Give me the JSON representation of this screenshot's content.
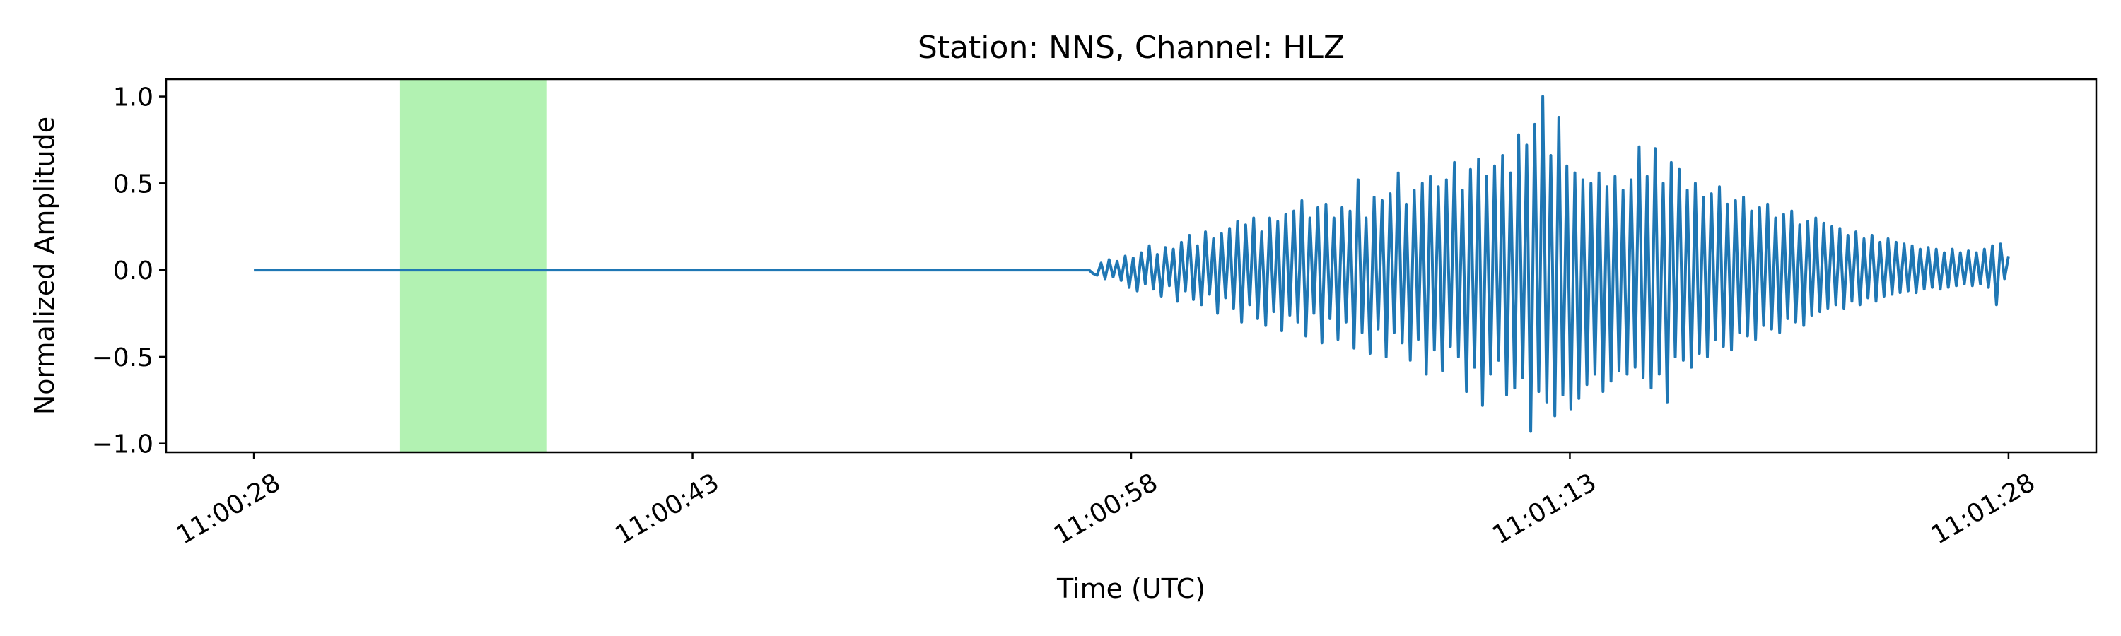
{
  "chart_data": {
    "type": "line",
    "title": "Station: NNS, Channel: HLZ",
    "xlabel": "Time (UTC)",
    "ylabel": "Normalized Amplitude",
    "x_start": "11:00:28",
    "x_end": "11:01:28",
    "xlim": [
      "11:00:25",
      "11:01:31"
    ],
    "ylim": [
      -1.05,
      1.1
    ],
    "x_ticks": [
      "11:00:28",
      "11:00:43",
      "11:00:58",
      "11:01:13",
      "11:01:28"
    ],
    "y_ticks": [
      -1.0,
      -0.5,
      0.0,
      0.5,
      1.0
    ],
    "y_tick_labels": [
      "−1.0",
      "−0.5",
      "0.0",
      "0.5",
      "1.0"
    ],
    "x_tick_rotation_deg": 30,
    "grid": false,
    "highlight_span": {
      "start": "11:00:33",
      "end": "11:00:38",
      "color": "#b2f2b2"
    },
    "series": [
      {
        "color": "#1f77b4",
        "values": [
          0.0,
          0.0,
          0.0,
          0.0,
          0.0,
          0.0,
          0.0,
          0.0,
          0.0,
          0.0,
          0.0,
          0.0,
          0.0,
          0.0,
          0.0,
          0.0,
          0.0,
          0.0,
          0.0,
          0.0,
          0.0,
          0.0,
          0.0,
          0.0,
          0.0,
          0.0,
          0.0,
          0.0,
          0.0,
          0.0,
          0.0,
          0.0,
          0.0,
          0.0,
          0.0,
          0.0,
          0.0,
          0.0,
          0.0,
          0.0,
          0.0,
          0.0,
          0.0,
          0.0,
          0.0,
          0.0,
          0.0,
          0.0,
          0.0,
          0.0,
          0.0,
          0.0,
          0.0,
          0.0,
          0.0,
          0.0,
          0.0,
          0.0,
          0.0,
          0.0,
          0.0,
          0.0,
          0.0,
          0.0,
          0.0,
          0.0,
          0.0,
          0.0,
          0.0,
          0.0,
          0.0,
          0.0,
          0.0,
          0.0,
          0.0,
          0.0,
          0.0,
          0.0,
          0.0,
          0.0,
          0.0,
          0.0,
          0.0,
          0.0,
          0.0,
          0.0,
          0.0,
          0.0,
          0.0,
          0.0,
          0.0,
          0.0,
          0.0,
          0.0,
          0.0,
          0.0,
          0.0,
          0.0,
          0.0,
          0.0,
          0.0,
          0.0,
          0.0,
          0.0,
          0.0,
          0.0,
          0.0,
          0.0,
          0.0,
          0.0,
          0.0,
          0.0,
          0.0,
          0.0,
          0.0,
          0.0,
          0.0,
          0.0,
          0.0,
          0.0,
          0.0,
          0.0,
          0.0,
          0.0,
          0.0,
          0.0,
          0.0,
          0.0,
          0.0,
          0.0,
          0.0,
          0.0,
          0.0,
          0.0,
          0.0,
          0.0,
          0.0,
          0.0,
          0.0,
          0.0,
          0.0,
          0.0,
          0.0,
          0.0,
          0.0,
          0.0,
          0.0,
          0.0,
          0.0,
          0.0,
          0.0,
          0.0,
          0.0,
          0.0,
          0.0,
          0.0,
          0.0,
          0.0,
          0.0,
          0.0,
          0.0,
          0.0,
          0.0,
          0.0,
          0.0,
          0.0,
          0.0,
          0.0,
          0.0,
          0.0,
          0.0,
          0.0,
          0.0,
          0.0,
          0.0,
          0.0,
          0.0,
          0.0,
          0.0,
          0.0,
          0.0,
          0.0,
          0.0,
          0.0,
          0.0,
          0.0,
          0.0,
          0.0,
          0.0,
          0.0,
          0.0,
          0.0,
          0.0,
          0.0,
          0.0,
          0.0,
          0.0,
          0.0,
          0.0,
          0.0,
          0.0,
          0.0,
          0.0,
          0.0,
          0.0,
          0.0,
          0.0,
          0.0,
          0.0,
          -0.02,
          -0.03,
          0.04,
          -0.05,
          0.06,
          -0.04,
          0.05,
          -0.06,
          0.08,
          -0.1,
          0.07,
          -0.12,
          0.1,
          -0.08,
          0.14,
          -0.11,
          0.09,
          -0.15,
          0.13,
          -0.09,
          0.12,
          -0.18,
          0.16,
          -0.12,
          0.2,
          -0.17,
          0.14,
          -0.2,
          0.22,
          -0.14,
          0.18,
          -0.25,
          0.21,
          -0.16,
          0.24,
          -0.22,
          0.28,
          -0.3,
          0.26,
          -0.2,
          0.3,
          -0.28,
          0.22,
          -0.32,
          0.3,
          -0.24,
          0.28,
          -0.35,
          0.32,
          -0.26,
          0.34,
          -0.3,
          0.4,
          -0.38,
          0.3,
          -0.25,
          0.36,
          -0.42,
          0.38,
          -0.28,
          0.3,
          -0.4,
          0.36,
          -0.3,
          0.34,
          -0.45,
          0.52,
          -0.36,
          0.3,
          -0.48,
          0.42,
          -0.34,
          0.4,
          -0.5,
          0.44,
          -0.36,
          0.56,
          -0.42,
          0.38,
          -0.52,
          0.46,
          -0.4,
          0.5,
          -0.6,
          0.54,
          -0.46,
          0.48,
          -0.58,
          0.52,
          -0.44,
          0.62,
          -0.5,
          0.46,
          -0.7,
          0.58,
          -0.56,
          0.64,
          -0.78,
          0.54,
          -0.6,
          0.6,
          -0.52,
          0.66,
          -0.72,
          0.56,
          -0.68,
          0.78,
          -0.62,
          0.72,
          -0.93,
          0.84,
          -0.7,
          1.0,
          -0.76,
          0.66,
          -0.84,
          0.88,
          -0.72,
          0.6,
          -0.8,
          0.56,
          -0.74,
          0.52,
          -0.66,
          0.5,
          -0.6,
          0.56,
          -0.7,
          0.48,
          -0.64,
          0.54,
          -0.58,
          0.46,
          -0.6,
          0.52,
          -0.56,
          0.71,
          -0.62,
          0.54,
          -0.68,
          0.7,
          -0.6,
          0.5,
          -0.76,
          0.62,
          -0.5,
          0.58,
          -0.52,
          0.46,
          -0.56,
          0.5,
          -0.48,
          0.42,
          -0.5,
          0.44,
          -0.4,
          0.48,
          -0.44,
          0.38,
          -0.46,
          0.4,
          -0.36,
          0.42,
          -0.38,
          0.34,
          -0.4,
          0.36,
          -0.32,
          0.38,
          -0.34,
          0.3,
          -0.36,
          0.32,
          -0.28,
          0.34,
          -0.3,
          0.26,
          -0.32,
          0.28,
          -0.26,
          0.3,
          -0.24,
          0.27,
          -0.22,
          0.25,
          -0.2,
          0.24,
          -0.22,
          0.2,
          -0.18,
          0.22,
          -0.2,
          0.18,
          -0.16,
          0.2,
          -0.18,
          0.16,
          -0.15,
          0.18,
          -0.14,
          0.16,
          -0.13,
          0.15,
          -0.12,
          0.14,
          -0.13,
          0.12,
          -0.11,
          0.13,
          -0.1,
          0.12,
          -0.11,
          0.1,
          -0.1,
          0.12,
          -0.09,
          0.1,
          -0.08,
          0.11,
          -0.09,
          0.1,
          -0.08,
          0.12,
          -0.1,
          0.14,
          -0.2,
          0.15,
          -0.05,
          0.08
        ]
      }
    ]
  }
}
